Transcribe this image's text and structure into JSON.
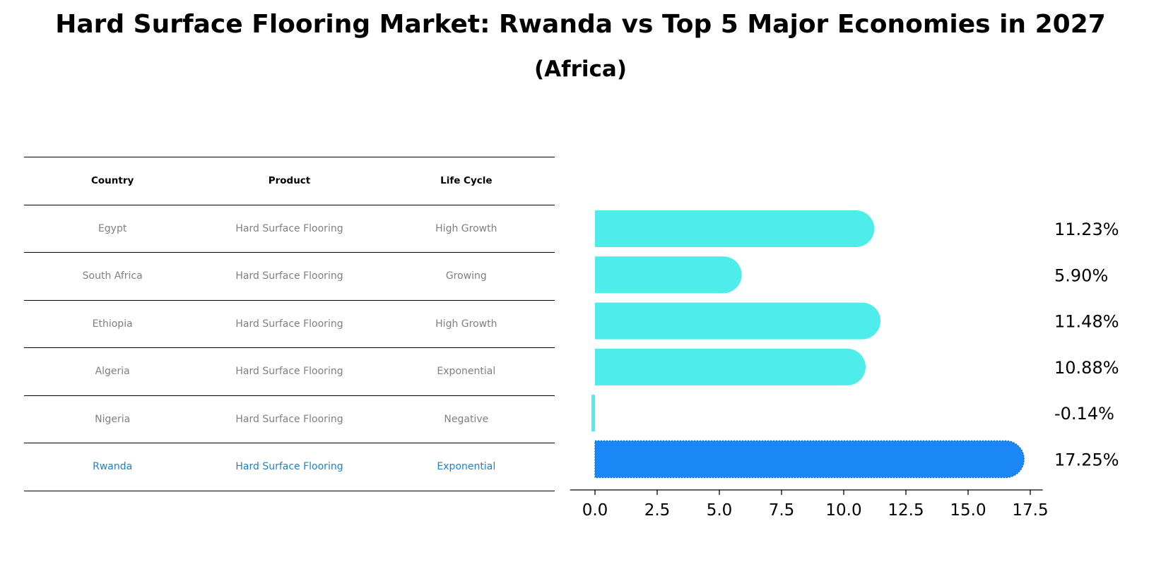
{
  "title": "Hard Surface Flooring Market: Rwanda vs Top 5 Major Economies in 2027",
  "subtitle": "(Africa)",
  "table": {
    "headers": [
      "Country",
      "Product",
      "Life Cycle"
    ],
    "rows": [
      {
        "country": "Egypt",
        "product": "Hard Surface Flooring",
        "life_cycle": "High Growth"
      },
      {
        "country": "South Africa",
        "product": "Hard Surface Flooring",
        "life_cycle": "Growing"
      },
      {
        "country": "Ethiopia",
        "product": "Hard Surface Flooring",
        "life_cycle": "High Growth"
      },
      {
        "country": "Algeria",
        "product": "Hard Surface Flooring",
        "life_cycle": "Exponential"
      },
      {
        "country": "Nigeria",
        "product": "Hard Surface Flooring",
        "life_cycle": "Negative"
      },
      {
        "country": "Rwanda",
        "product": "Hard Surface Flooring",
        "life_cycle": "Exponential"
      }
    ]
  },
  "chart_data": {
    "type": "bar",
    "orientation": "horizontal",
    "categories": [
      "Egypt",
      "South Africa",
      "Ethiopia",
      "Algeria",
      "Nigeria",
      "Rwanda"
    ],
    "values": [
      11.23,
      5.9,
      11.48,
      10.88,
      -0.14,
      17.25
    ],
    "value_labels": [
      "11.23%",
      "5.90%",
      "11.48%",
      "10.88%",
      "-0.14%",
      "17.25%"
    ],
    "highlight": "Rwanda",
    "xlim": [
      -1.0,
      18.0
    ],
    "xticks": [
      0.0,
      2.5,
      5.0,
      7.5,
      10.0,
      12.5,
      15.0,
      17.5
    ],
    "xtick_labels": [
      "0.0",
      "2.5",
      "5.0",
      "7.5",
      "10.0",
      "12.5",
      "15.0",
      "17.5"
    ],
    "colors": {
      "bar": "#4eeceb",
      "highlight": "#1b86f5"
    }
  }
}
